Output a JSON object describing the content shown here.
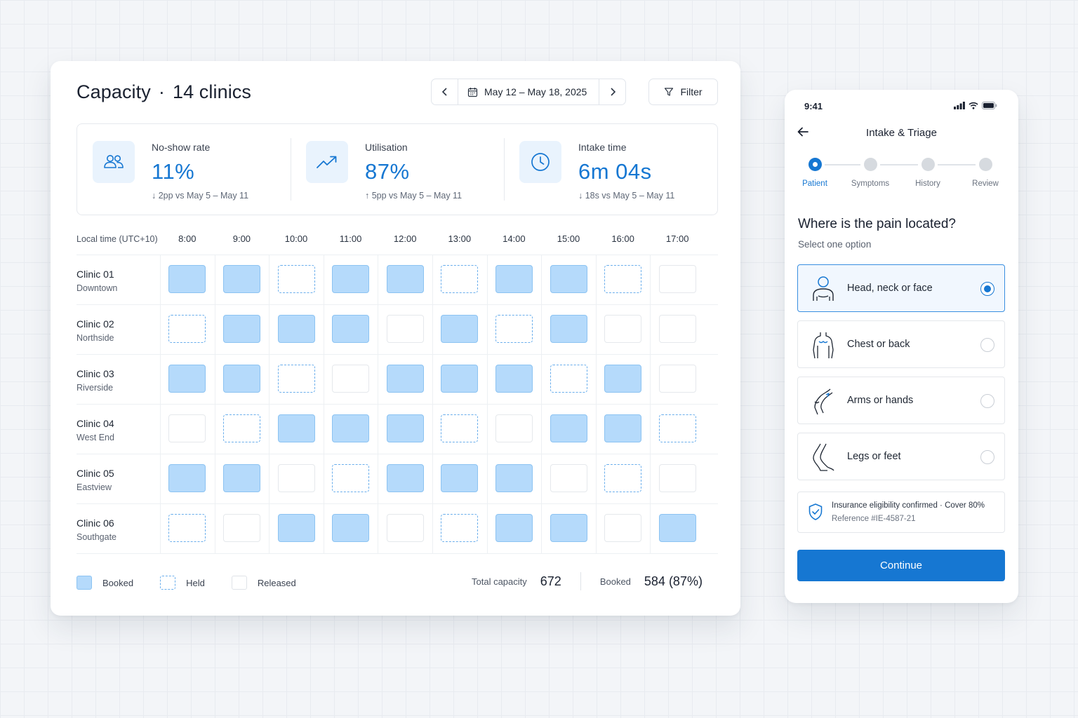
{
  "capacity": {
    "title": "Capacity",
    "separator": "·",
    "clinics_label": "14 clinics",
    "date_range": "May 12 – May 18, 2025",
    "prev_icon": "chevron-left-icon",
    "next_icon": "chevron-right-icon",
    "filter_label": "Filter",
    "kpis": [
      {
        "icon": "people-icon",
        "label": "No-show rate",
        "value": "11%",
        "delta": "↓ 2pp vs May 5 – May 11"
      },
      {
        "icon": "trend-up-icon",
        "label": "Utilisation",
        "value": "87%",
        "delta": "↑ 5pp vs May 5 – May 11"
      },
      {
        "icon": "clock-icon",
        "label": "Intake time",
        "value": "6m 04s",
        "delta": "↓ 18s vs May 5 – May 11"
      }
    ],
    "timezone_label": "Local time (UTC+10)",
    "hours": [
      "8:00",
      "9:00",
      "10:00",
      "11:00",
      "12:00",
      "13:00",
      "14:00",
      "15:00",
      "16:00",
      "17:00"
    ],
    "rows": [
      {
        "name": "Clinic 01",
        "location": "Downtown",
        "slots": [
          "booked",
          "booked",
          "held",
          "booked",
          "booked",
          "held",
          "booked",
          "booked",
          "held",
          "released"
        ]
      },
      {
        "name": "Clinic 02",
        "location": "Northside",
        "slots": [
          "held",
          "booked",
          "booked",
          "booked",
          "released",
          "booked",
          "held",
          "booked",
          "released",
          "released"
        ]
      },
      {
        "name": "Clinic 03",
        "location": "Riverside",
        "slots": [
          "booked",
          "booked",
          "held",
          "released",
          "booked",
          "booked",
          "booked",
          "held",
          "booked",
          "released"
        ]
      },
      {
        "name": "Clinic 04",
        "location": "West End",
        "slots": [
          "released",
          "held",
          "booked",
          "booked",
          "booked",
          "held",
          "released",
          "booked",
          "booked",
          "held"
        ]
      },
      {
        "name": "Clinic 05",
        "location": "Eastview",
        "slots": [
          "booked",
          "booked",
          "released",
          "held",
          "booked",
          "booked",
          "booked",
          "released",
          "held",
          "released"
        ]
      },
      {
        "name": "Clinic 06",
        "location": "Southgate",
        "slots": [
          "held",
          "released",
          "booked",
          "booked",
          "released",
          "held",
          "booked",
          "booked",
          "released",
          "booked"
        ]
      }
    ],
    "legend": {
      "booked": "Booked",
      "held": "Held",
      "released": "Released"
    },
    "totals": {
      "capacity_label": "Total capacity",
      "capacity_value": "672",
      "booked_label": "Booked",
      "booked_value": "584 (87%)"
    },
    "colors": {
      "accent": "#1677d2",
      "booked_fill": "#b5dafb",
      "held_border": "#6aaeec"
    }
  },
  "phone": {
    "status_time": "9:41",
    "status_icons": [
      "signal-icon",
      "wifi-icon",
      "battery-icon"
    ],
    "back_icon": "arrow-left-icon",
    "title": "Intake & Triage",
    "steps": [
      {
        "label": "Patient",
        "active": true
      },
      {
        "label": "Symptoms",
        "active": false
      },
      {
        "label": "History",
        "active": false
      },
      {
        "label": "Review",
        "active": false
      }
    ],
    "question": "Where is the pain located?",
    "question_sub": "Select one option",
    "options": [
      {
        "label": "Head, neck or face",
        "icon": "head-body-icon",
        "selected": true
      },
      {
        "label": "Chest or back",
        "icon": "torso-icon",
        "selected": false
      },
      {
        "label": "Arms or hands",
        "icon": "arm-icon",
        "selected": false
      },
      {
        "label": "Legs or feet",
        "icon": "leg-icon",
        "selected": false
      }
    ],
    "insurance": {
      "icon": "shield-check-icon",
      "line1": "Insurance eligibility confirmed · Cover 80%",
      "line2": "Reference #IE-4587-21"
    },
    "continue_label": "Continue"
  }
}
